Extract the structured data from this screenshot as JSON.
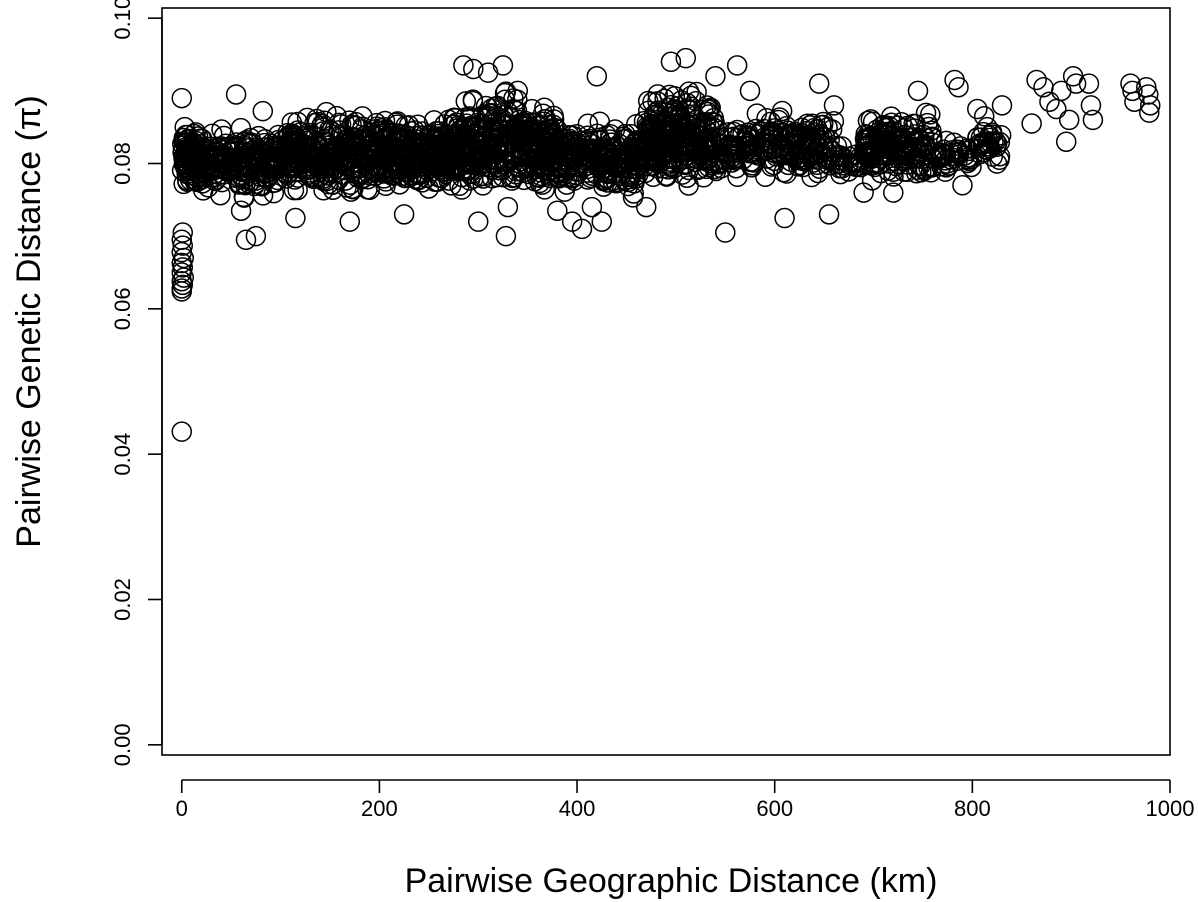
{
  "chart_data": {
    "type": "scatter",
    "title": "",
    "xlabel": "Pairwise Geographic Distance (km)",
    "ylabel": "Pairwise Genetic Distance (π)",
    "xlim": [
      -20,
      1000
    ],
    "ylim": [
      -0.0014,
      0.1014
    ],
    "xticks": [
      0,
      200,
      400,
      600,
      800,
      1000
    ],
    "yticks": [
      0.0,
      0.02,
      0.04,
      0.06,
      0.08,
      0.1
    ],
    "xtick_labels": [
      "0",
      "200",
      "400",
      "600",
      "800",
      "1000"
    ],
    "ytick_labels": [
      "0.00",
      "0.02",
      "0.04",
      "0.06",
      "0.08",
      "0.10"
    ],
    "grid": false,
    "legend": "none",
    "marker": "open-circle",
    "color": "#000000",
    "series": [
      {
        "points": [
          [
            0,
            0.0431
          ],
          [
            0,
            0.0624
          ],
          [
            0,
            0.0628
          ],
          [
            1,
            0.0633
          ],
          [
            0,
            0.0638
          ],
          [
            2,
            0.0643
          ],
          [
            0,
            0.065
          ],
          [
            1,
            0.0657
          ],
          [
            0,
            0.0663
          ],
          [
            2,
            0.067
          ],
          [
            0,
            0.0678
          ],
          [
            1,
            0.0687
          ],
          [
            0,
            0.0695
          ],
          [
            1,
            0.0705
          ],
          [
            0,
            0.089
          ],
          [
            3,
            0.085
          ],
          [
            55,
            0.0895
          ],
          [
            65,
            0.0695
          ],
          [
            75,
            0.07
          ],
          [
            60,
            0.0735
          ],
          [
            82,
            0.0872
          ],
          [
            115,
            0.0725
          ],
          [
            170,
            0.072
          ],
          [
            225,
            0.073
          ],
          [
            285,
            0.0935
          ],
          [
            295,
            0.093
          ],
          [
            300,
            0.072
          ],
          [
            310,
            0.0925
          ],
          [
            325,
            0.0935
          ],
          [
            328,
            0.07
          ],
          [
            330,
            0.074
          ],
          [
            340,
            0.09
          ],
          [
            380,
            0.0735
          ],
          [
            395,
            0.072
          ],
          [
            405,
            0.071
          ],
          [
            415,
            0.074
          ],
          [
            420,
            0.092
          ],
          [
            425,
            0.072
          ],
          [
            470,
            0.074
          ],
          [
            495,
            0.094
          ],
          [
            510,
            0.0945
          ],
          [
            540,
            0.092
          ],
          [
            550,
            0.0705
          ],
          [
            562,
            0.0935
          ],
          [
            575,
            0.09
          ],
          [
            610,
            0.0725
          ],
          [
            645,
            0.091
          ],
          [
            655,
            0.073
          ],
          [
            660,
            0.088
          ],
          [
            690,
            0.076
          ],
          [
            720,
            0.076
          ],
          [
            745,
            0.09
          ],
          [
            782,
            0.0915
          ],
          [
            786,
            0.0905
          ],
          [
            790,
            0.077
          ],
          [
            805,
            0.0875
          ],
          [
            812,
            0.0865
          ],
          [
            815,
            0.085
          ],
          [
            820,
            0.084
          ],
          [
            825,
            0.08
          ],
          [
            828,
            0.081
          ],
          [
            830,
            0.088
          ],
          [
            860,
            0.0855
          ],
          [
            865,
            0.0915
          ],
          [
            872,
            0.0905
          ],
          [
            878,
            0.0885
          ],
          [
            885,
            0.0875
          ],
          [
            890,
            0.09
          ],
          [
            895,
            0.083
          ],
          [
            898,
            0.086
          ],
          [
            902,
            0.092
          ],
          [
            905,
            0.091
          ],
          [
            918,
            0.091
          ],
          [
            920,
            0.088
          ],
          [
            922,
            0.086
          ],
          [
            960,
            0.091
          ],
          [
            962,
            0.09
          ],
          [
            964,
            0.0885
          ],
          [
            976,
            0.0905
          ],
          [
            978,
            0.0895
          ],
          [
            980,
            0.088
          ],
          [
            979,
            0.087
          ]
        ],
        "clusters": [
          {
            "x": [
              0,
              20
            ],
            "y": [
              0.076,
              0.0855
            ],
            "n": 110
          },
          {
            "x": [
              20,
              100
            ],
            "y": [
              0.0745,
              0.086
            ],
            "n": 200
          },
          {
            "x": [
              100,
              200
            ],
            "y": [
              0.0745,
              0.088
            ],
            "n": 300
          },
          {
            "x": [
              200,
              270
            ],
            "y": [
              0.0745,
              0.0875
            ],
            "n": 240
          },
          {
            "x": [
              270,
              380
            ],
            "y": [
              0.074,
              0.091
            ],
            "n": 380
          },
          {
            "x": [
              380,
              470
            ],
            "y": [
              0.0745,
              0.087
            ],
            "n": 240
          },
          {
            "x": [
              470,
              540
            ],
            "y": [
              0.076,
              0.0915
            ],
            "n": 260
          },
          {
            "x": [
              540,
              580
            ],
            "y": [
              0.077,
              0.087
            ],
            "n": 60
          },
          {
            "x": [
              580,
              660
            ],
            "y": [
              0.0765,
              0.088
            ],
            "n": 150
          },
          {
            "x": [
              660,
              690
            ],
            "y": [
              0.078,
              0.083
            ],
            "n": 30
          },
          {
            "x": [
              690,
              760
            ],
            "y": [
              0.0765,
              0.088
            ],
            "n": 170
          },
          {
            "x": [
              760,
              800
            ],
            "y": [
              0.078,
              0.084
            ],
            "n": 40
          },
          {
            "x": [
              805,
              830
            ],
            "y": [
              0.079,
              0.086
            ],
            "n": 30
          }
        ]
      }
    ]
  }
}
